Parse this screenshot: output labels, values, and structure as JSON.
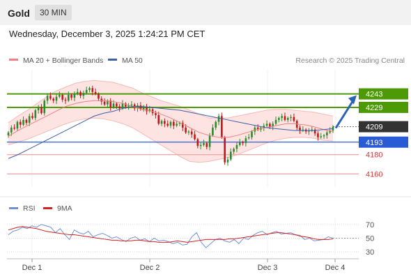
{
  "header": {
    "symbol": "Gold",
    "timeframe": "30 MIN"
  },
  "datetime": "Wednesday, December 3, 2025 1:24:21 PM CET",
  "legend": {
    "bollinger": "MA 20 + Bollinger Bands",
    "ma50": "MA 50",
    "copyright": "Research © 2025 Trading Central",
    "rsi": "RSI",
    "rsi_ma": "9MA"
  },
  "colors": {
    "bollinger": "#f08080",
    "band_fill": "#fde4e2",
    "ma50": "#3b5fa8",
    "resistance": "#4c9a06",
    "current": "#333333",
    "pivot": "#2a5bd7",
    "support": "#e07070",
    "candle_up": "#2c8a2c",
    "candle_down": "#c01818",
    "rsi": "#6f8fd8",
    "rsi_ma": "#d02020",
    "arrow": "#2a62b8"
  },
  "chart_data": [
    {
      "type": "candlestick",
      "title": "Gold",
      "timeframe": "30 MIN",
      "ylim": [
        4148,
        4268
      ],
      "x_tick_labels": [
        "Dec 1",
        "Dec 2",
        "Dec 3",
        "Dec 4"
      ],
      "levels": [
        {
          "label": "4243",
          "value": 4243,
          "kind": "resistance"
        },
        {
          "label": "4229",
          "value": 4229,
          "kind": "resistance"
        },
        {
          "label": "4209",
          "value": 4209,
          "kind": "current"
        },
        {
          "label": "4193",
          "value": 4193,
          "kind": "pivot"
        },
        {
          "label": "4180",
          "value": 4180,
          "kind": "support"
        },
        {
          "label": "4160",
          "value": 4160,
          "kind": "support"
        }
      ],
      "close": [
        4203,
        4208,
        4207,
        4214,
        4211,
        4216,
        4213,
        4220,
        4218,
        4226,
        4229,
        4223,
        4236,
        4241,
        4238,
        4236,
        4240,
        4242,
        4237,
        4236,
        4242,
        4239,
        4243,
        4245,
        4241,
        4244,
        4247,
        4249,
        4245,
        4243,
        4238,
        4235,
        4232,
        4236,
        4229,
        4233,
        4230,
        4228,
        4233,
        4230,
        4231,
        4232,
        4228,
        4231,
        4227,
        4230,
        4225,
        4227,
        4223,
        4221,
        4212,
        4215,
        4212,
        4210,
        4214,
        4210,
        4212,
        4213,
        4208,
        4203,
        4204,
        4201,
        4196,
        4189,
        4190,
        4192,
        4188,
        4200,
        4208,
        4214,
        4220,
        4198,
        4172,
        4175,
        4183,
        4186,
        4190,
        4193,
        4192,
        4197,
        4198,
        4204,
        4208,
        4206,
        4208,
        4210,
        4212,
        4209,
        4212,
        4216,
        4218,
        4220,
        4216,
        4218,
        4219,
        4215,
        4208,
        4205,
        4206,
        4204,
        4205,
        4206,
        4202,
        4198,
        4199,
        4200,
        4203,
        4205,
        4209
      ],
      "bollinger_mid": [
        4199,
        4205,
        4210,
        4215,
        4220,
        4225,
        4230,
        4233,
        4235,
        4236,
        4236,
        4235,
        4233,
        4230,
        4227,
        4225,
        4222,
        4218,
        4213,
        4208,
        4203,
        4200,
        4198,
        4198,
        4200,
        4203,
        4206,
        4208,
        4210,
        4212,
        4212,
        4211,
        4209,
        4206,
        4204
      ],
      "bollinger_upper": [
        4213,
        4220,
        4226,
        4233,
        4240,
        4246,
        4250,
        4254,
        4256,
        4257,
        4256,
        4255,
        4252,
        4249,
        4244,
        4240,
        4236,
        4233,
        4230,
        4226,
        4222,
        4218,
        4218,
        4218,
        4220,
        4222,
        4224,
        4226,
        4227,
        4227,
        4226,
        4225,
        4224,
        4222,
        4220
      ],
      "bollinger_lower": [
        4190,
        4193,
        4196,
        4200,
        4204,
        4208,
        4212,
        4215,
        4217,
        4218,
        4217,
        4215,
        4212,
        4208,
        4202,
        4196,
        4190,
        4184,
        4178,
        4173,
        4172,
        4173,
        4175,
        4177,
        4180,
        4184,
        4188,
        4192,
        4195,
        4197,
        4198,
        4198,
        4197,
        4195,
        4194
      ],
      "ma50": [
        4176,
        4180,
        4185,
        4190,
        4195,
        4200,
        4205,
        4210,
        4215,
        4220,
        4223,
        4225,
        4228,
        4230,
        4230,
        4229,
        4228,
        4227,
        4226,
        4224,
        4222,
        4220,
        4218,
        4216,
        4214,
        4212,
        4210,
        4208,
        4207,
        4206,
        4205,
        4205,
        4205,
        4206,
        4207
      ]
    },
    {
      "type": "line",
      "series_names": [
        "RSI",
        "9MA"
      ],
      "ylim": [
        25,
        80
      ],
      "y_tick_labels": [
        "70",
        "50",
        "30"
      ],
      "y_tick_values": [
        70,
        50,
        30
      ],
      "rsi": [
        55,
        60,
        62,
        66,
        64,
        68,
        66,
        70,
        68,
        66,
        58,
        64,
        55,
        48,
        62,
        58,
        56,
        60,
        52,
        55,
        57,
        54,
        50,
        52,
        48,
        45,
        50,
        52,
        47,
        49,
        45,
        50,
        46,
        47,
        45,
        42,
        44,
        40,
        41,
        52,
        58,
        44,
        36,
        42,
        48,
        50,
        46,
        44,
        48,
        42,
        50,
        48,
        54,
        58,
        60,
        55,
        58,
        60,
        56,
        57,
        58,
        55,
        54,
        48,
        50,
        46,
        47,
        48,
        52,
        50
      ],
      "rsi_ma": [
        62,
        64,
        66,
        67,
        66,
        65,
        64,
        62,
        60,
        59,
        58,
        57,
        56,
        55,
        55,
        54,
        53,
        52,
        51,
        50,
        49,
        48,
        47,
        47,
        46,
        46,
        46,
        47,
        47,
        46,
        45,
        45,
        44,
        44,
        44,
        45,
        46,
        45,
        44,
        45,
        46,
        47,
        48,
        48,
        48,
        48,
        48,
        49,
        49,
        50,
        51,
        52,
        53,
        54,
        55,
        56,
        57,
        58,
        58,
        57,
        56,
        55,
        53,
        52,
        51,
        49,
        48,
        48,
        48,
        49
      ]
    }
  ]
}
